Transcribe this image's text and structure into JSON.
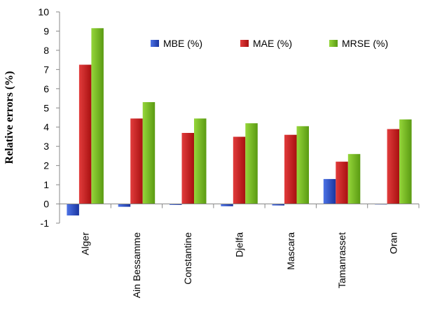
{
  "chart_data": {
    "type": "bar",
    "ylabel": "Relative errors (%)",
    "ylim": [
      -1,
      10
    ],
    "yticks": [
      "-1",
      "0",
      "1",
      "2",
      "3",
      "4",
      "5",
      "6",
      "7",
      "8",
      "9",
      "10"
    ],
    "grid": false,
    "legend_position": "top-right",
    "categories": [
      "Alger",
      "Ain Bessamme",
      "Constantine",
      "Djelfa",
      "Mascara",
      "Tamanrasset",
      "Oran"
    ],
    "series": [
      {
        "name": "MBE (%)",
        "color": "#1f3fb5",
        "values": [
          -0.6,
          -0.15,
          -0.05,
          -0.12,
          -0.08,
          1.3,
          -0.03
        ]
      },
      {
        "name": "MAE (%)",
        "color": "#c81a1a",
        "values": [
          7.25,
          4.45,
          3.7,
          3.5,
          3.6,
          2.2,
          3.9
        ]
      },
      {
        "name": "MRSE (%)",
        "color": "#6fb31c",
        "values": [
          9.15,
          5.3,
          4.45,
          4.2,
          4.05,
          2.6,
          4.4
        ]
      }
    ]
  }
}
